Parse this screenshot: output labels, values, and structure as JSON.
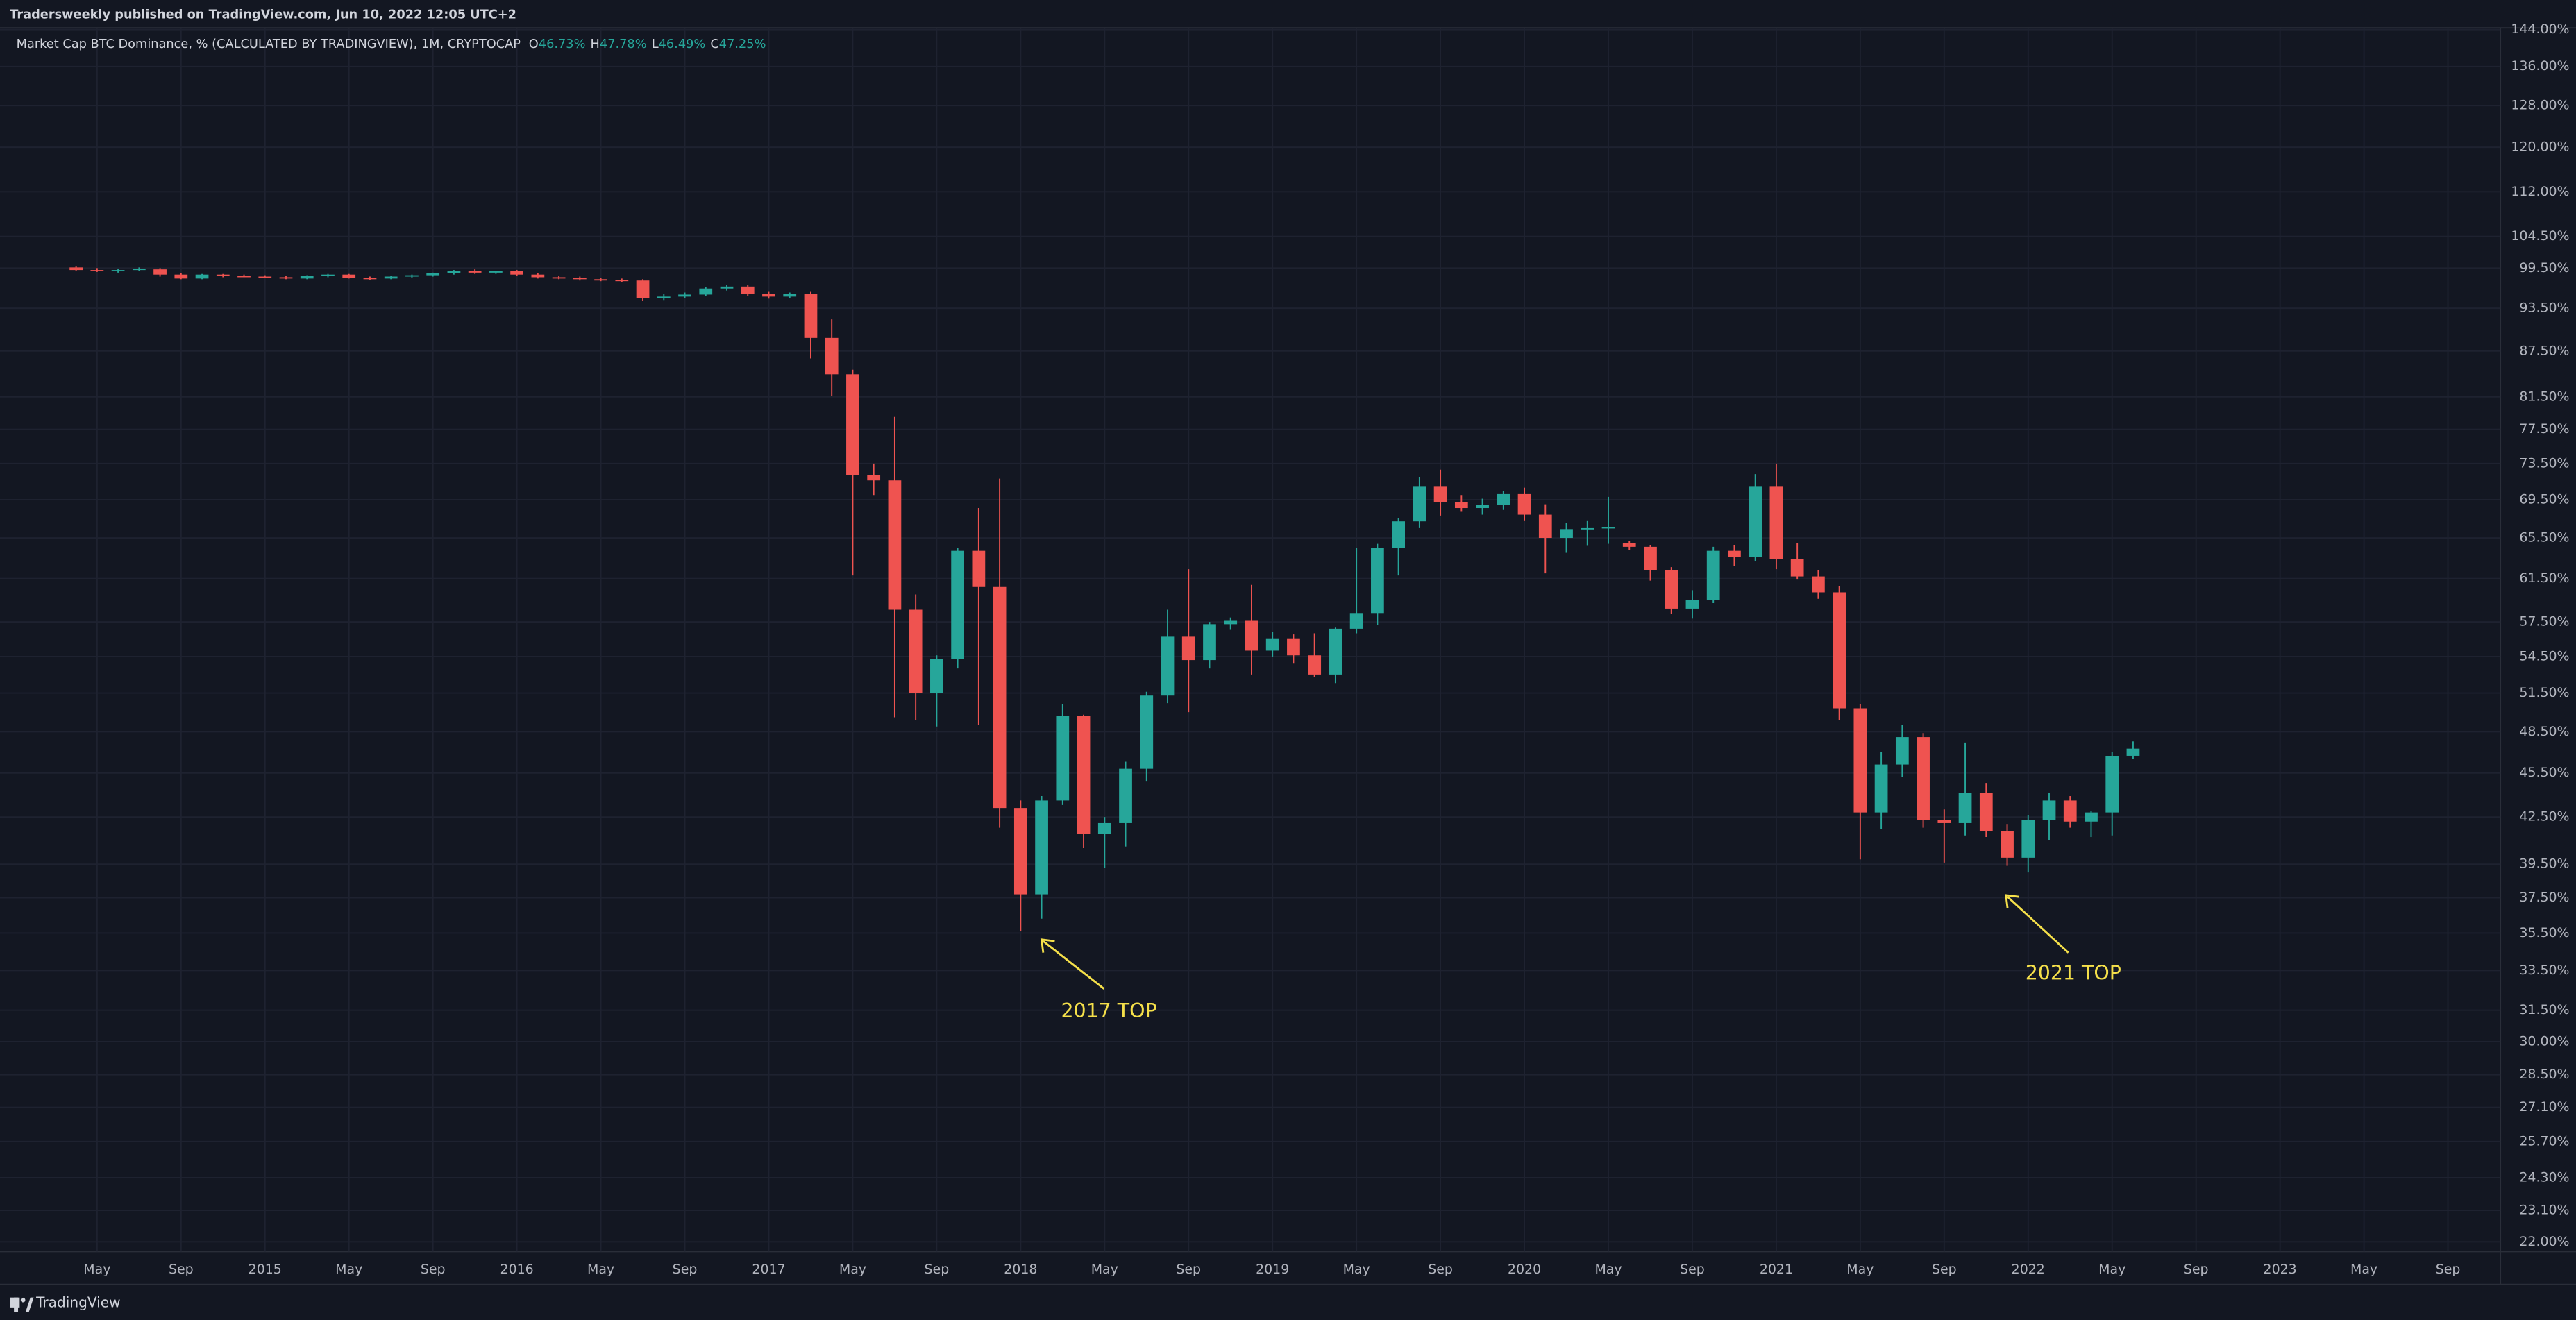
{
  "header": {
    "publisher": "Tradersweekly published on TradingView.com, Jun 10, 2022 12:05 UTC+2"
  },
  "footer": {
    "brand": "TradingView"
  },
  "chart_data": {
    "type": "candlestick",
    "title": "Market Cap BTC Dominance, % (CALCULATED BY TRADINGVIEW), 1M, CRYPTOCAP",
    "ohlc_legend": [
      {
        "key": "O",
        "label": "46.73%"
      },
      {
        "key": "H",
        "label": "47.78%"
      },
      {
        "key": "L",
        "label": "46.49%"
      },
      {
        "key": "C",
        "label": "47.25%"
      }
    ],
    "log": true,
    "grid": true,
    "up_color": "#26a69a",
    "down_color": "#ef5350",
    "annotation_color": "#f5e04a",
    "annotations": [
      "2017 TOP",
      "2021 TOP"
    ],
    "ylim": [
      21.67,
      144.37
    ],
    "yticks": [
      {
        "value": 144,
        "label": "144.00%"
      },
      {
        "value": 136,
        "label": "136.00%"
      },
      {
        "value": 128,
        "label": "128.00%"
      },
      {
        "value": 120,
        "label": "120.00%"
      },
      {
        "value": 112,
        "label": "112.00%"
      },
      {
        "value": 104.5,
        "label": "104.50%"
      },
      {
        "value": 99.5,
        "label": "99.50%"
      },
      {
        "value": 93.5,
        "label": "93.50%"
      },
      {
        "value": 87.5,
        "label": "87.50%"
      },
      {
        "value": 81.5,
        "label": "81.50%"
      },
      {
        "value": 77.5,
        "label": "77.50%"
      },
      {
        "value": 73.5,
        "label": "73.50%"
      },
      {
        "value": 69.5,
        "label": "69.50%"
      },
      {
        "value": 65.5,
        "label": "65.50%"
      },
      {
        "value": 61.5,
        "label": "61.50%"
      },
      {
        "value": 57.5,
        "label": "57.50%"
      },
      {
        "value": 54.5,
        "label": "54.50%"
      },
      {
        "value": 51.5,
        "label": "51.50%"
      },
      {
        "value": 48.5,
        "label": "48.50%"
      },
      {
        "value": 45.5,
        "label": "45.50%"
      },
      {
        "value": 42.5,
        "label": "42.50%"
      },
      {
        "value": 39.5,
        "label": "39.50%"
      },
      {
        "value": 37.5,
        "label": "37.50%"
      },
      {
        "value": 35.5,
        "label": "35.50%"
      },
      {
        "value": 33.5,
        "label": "33.50%"
      },
      {
        "value": 31.5,
        "label": "31.50%"
      },
      {
        "value": 30,
        "label": "30.00%"
      },
      {
        "value": 28.5,
        "label": "28.50%"
      },
      {
        "value": 27.1,
        "label": "27.10%"
      },
      {
        "value": 25.7,
        "label": "25.70%"
      },
      {
        "value": 24.3,
        "label": "24.30%"
      },
      {
        "value": 23.1,
        "label": "23.10%"
      },
      {
        "value": 22,
        "label": "22.00%"
      }
    ],
    "categories": [
      null,
      null,
      null,
      null,
      "May",
      null,
      null,
      null,
      "Sep",
      null,
      null,
      null,
      "2015",
      null,
      null,
      null,
      "May",
      null,
      null,
      null,
      "Sep",
      null,
      null,
      null,
      "2016",
      null,
      null,
      null,
      "May",
      null,
      null,
      null,
      "Sep",
      null,
      null,
      null,
      "2017",
      null,
      null,
      null,
      "May",
      null,
      null,
      null,
      "Sep",
      null,
      null,
      null,
      "2018",
      null,
      null,
      null,
      "May",
      null,
      null,
      null,
      "Sep",
      null,
      null,
      null,
      "2019",
      null,
      null,
      null,
      "May",
      null,
      null,
      null,
      "Sep",
      null,
      null,
      null,
      "2020",
      null,
      null,
      null,
      "May",
      null,
      null,
      null,
      "Sep",
      null,
      null,
      null,
      "2021",
      null,
      null,
      null,
      "May",
      null,
      null,
      null,
      "Sep",
      null,
      null,
      null,
      "2022",
      null,
      null,
      null,
      "May",
      null,
      null,
      null,
      "Sep",
      null,
      null,
      null,
      "2023",
      null,
      null,
      null,
      "May",
      null,
      null,
      null,
      "Sep",
      null,
      null
    ],
    "open": [
      null,
      null,
      null,
      99.6,
      99.2,
      99.1,
      99.2,
      99.3,
      98.5,
      97.9,
      98.5,
      98.3,
      98.2,
      98.1,
      97.9,
      98.3,
      98.5,
      98.0,
      97.9,
      98.2,
      98.4,
      98.7,
      99.1,
      98.8,
      99.0,
      98.5,
      98.1,
      98.0,
      97.8,
      97.7,
      97.6,
      95.0,
      95.2,
      95.5,
      96.4,
      96.7,
      95.6,
      95.2,
      95.6,
      89.3,
      84.4,
      72.2,
      71.6,
      58.6,
      51.5,
      54.3,
      64.2,
      60.7,
      43.1,
      37.7,
      43.6,
      49.7,
      41.4,
      42.1,
      45.8,
      51.3,
      56.2,
      54.2,
      57.3,
      57.6,
      55.0,
      56.0,
      54.6,
      53.0,
      56.9,
      58.3,
      64.5,
      67.2,
      70.9,
      69.2,
      68.6,
      68.9,
      70.1,
      67.9,
      65.5,
      66.4,
      66.5,
      65.0,
      64.6,
      62.3,
      58.7,
      59.5,
      64.2,
      63.6,
      70.9,
      63.4,
      61.7,
      60.2,
      50.3,
      42.8,
      46.1,
      48.1,
      42.3,
      42.1,
      44.1,
      41.6,
      39.9,
      42.3,
      43.6,
      42.2,
      42.8,
      46.73,
      null,
      null,
      null,
      null,
      null,
      null,
      null,
      null,
      null,
      null,
      null,
      null,
      null,
      null,
      null,
      null,
      null
    ],
    "high": [
      null,
      null,
      null,
      99.8,
      99.5,
      99.4,
      99.6,
      99.5,
      98.7,
      98.6,
      98.6,
      98.5,
      98.4,
      98.3,
      98.4,
      98.6,
      98.6,
      98.2,
      98.3,
      98.5,
      98.8,
      99.2,
      99.3,
      99.1,
      99.2,
      98.7,
      98.3,
      98.2,
      98.0,
      97.9,
      97.8,
      95.6,
      95.8,
      96.6,
      96.9,
      96.9,
      95.9,
      95.8,
      95.9,
      91.9,
      85.0,
      73.5,
      79.0,
      60.0,
      54.6,
      64.5,
      68.6,
      71.8,
      43.6,
      43.9,
      50.6,
      49.8,
      42.5,
      46.3,
      51.6,
      58.6,
      62.4,
      57.5,
      57.9,
      60.9,
      56.6,
      56.4,
      56.5,
      57.0,
      64.5,
      64.9,
      67.5,
      72.0,
      72.8,
      70.0,
      69.6,
      70.4,
      70.8,
      69.0,
      67.0,
      67.3,
      69.8,
      65.2,
      64.8,
      62.6,
      60.4,
      64.6,
      64.8,
      72.3,
      73.5,
      65.0,
      62.3,
      60.8,
      50.6,
      47.0,
      49.0,
      48.4,
      43.0,
      47.7,
      44.8,
      42.0,
      42.6,
      44.1,
      43.9,
      42.9,
      47.0,
      47.78,
      null,
      null,
      null,
      null,
      null,
      null,
      null,
      null,
      null,
      null,
      null,
      null,
      null,
      null,
      null,
      null,
      null
    ],
    "low": [
      null,
      null,
      null,
      99.0,
      98.9,
      98.8,
      99.0,
      98.2,
      97.8,
      97.8,
      98.1,
      98.1,
      98.0,
      97.8,
      97.8,
      98.1,
      97.9,
      97.7,
      97.8,
      98.0,
      98.2,
      98.5,
      98.6,
      98.6,
      98.3,
      97.9,
      97.8,
      97.6,
      97.5,
      97.4,
      94.6,
      94.7,
      95.0,
      95.3,
      96.1,
      95.3,
      94.9,
      95.0,
      86.5,
      81.6,
      61.8,
      70.0,
      49.6,
      49.4,
      48.9,
      53.5,
      49.0,
      41.8,
      35.6,
      36.3,
      43.3,
      40.5,
      39.3,
      40.6,
      44.9,
      50.7,
      50.0,
      53.5,
      56.8,
      53.0,
      54.5,
      53.9,
      52.8,
      52.3,
      56.5,
      57.2,
      61.8,
      66.5,
      67.8,
      68.2,
      67.9,
      68.4,
      67.3,
      62.0,
      64.0,
      64.7,
      64.9,
      64.3,
      61.3,
      58.2,
      57.8,
      59.2,
      62.7,
      63.2,
      62.4,
      61.4,
      59.6,
      49.4,
      39.8,
      41.7,
      45.2,
      41.8,
      39.6,
      41.3,
      41.2,
      39.4,
      39.0,
      41.0,
      41.8,
      41.2,
      41.3,
      46.49,
      null,
      null,
      null,
      null,
      null,
      null,
      null,
      null,
      null,
      null,
      null,
      null,
      null,
      null,
      null,
      null,
      null
    ],
    "close": [
      null,
      null,
      null,
      99.2,
      99.1,
      99.2,
      99.4,
      98.5,
      97.9,
      98.5,
      98.3,
      98.2,
      98.1,
      97.9,
      98.3,
      98.5,
      98.0,
      97.9,
      98.2,
      98.4,
      98.7,
      99.1,
      98.8,
      99.0,
      98.5,
      98.1,
      98.0,
      97.8,
      97.7,
      97.6,
      95.0,
      95.2,
      95.5,
      96.4,
      96.7,
      95.6,
      95.2,
      95.6,
      89.3,
      84.4,
      72.2,
      71.6,
      58.6,
      51.5,
      54.3,
      64.2,
      60.7,
      43.1,
      37.7,
      43.6,
      49.7,
      41.4,
      42.1,
      45.8,
      51.3,
      56.2,
      54.2,
      57.3,
      57.6,
      55.0,
      56.0,
      54.6,
      53.0,
      56.9,
      58.3,
      64.5,
      67.2,
      70.9,
      69.2,
      68.6,
      68.9,
      70.1,
      67.9,
      65.5,
      66.4,
      66.5,
      66.6,
      64.6,
      62.3,
      58.7,
      59.5,
      64.2,
      63.6,
      70.9,
      63.4,
      61.7,
      60.2,
      50.3,
      42.8,
      46.1,
      48.1,
      42.3,
      42.1,
      44.1,
      41.6,
      39.9,
      42.3,
      43.6,
      42.2,
      42.8,
      46.7,
      47.25,
      null,
      null,
      null,
      null,
      null,
      null,
      null,
      null,
      null,
      null,
      null,
      null,
      null,
      null,
      null,
      null,
      null
    ]
  }
}
